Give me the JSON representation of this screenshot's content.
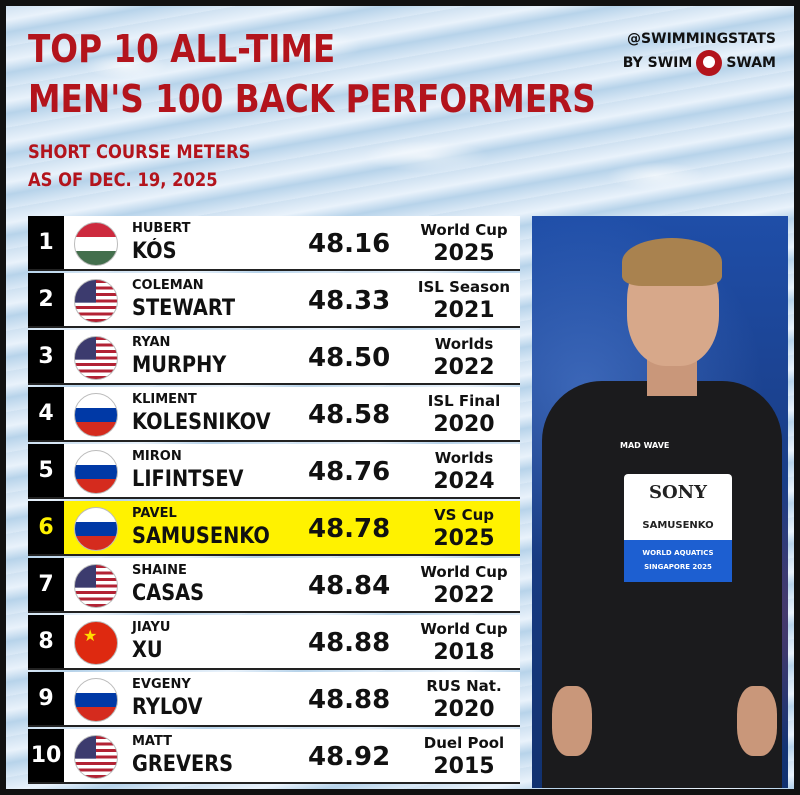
{
  "header": {
    "title_line1": "TOP 10 ALL-TIME",
    "title_line2": "MEN'S 100 BACK PERFORMERS",
    "subtitle_line1": "SHORT COURSE METERS",
    "subtitle_line2": "AS OF DEC. 19, 2025"
  },
  "brand": {
    "handle": "@SWIMMINGSTATS",
    "by": "BY SWIM",
    "swam": "SWAM",
    "logo_icon": "swimswam-logo-icon"
  },
  "colors": {
    "title": "#b3141c",
    "highlight": "#fff200",
    "rank_bg": "#000000"
  },
  "rows": [
    {
      "rank": "1",
      "first": "HUBERT",
      "last": "KÓS",
      "time": "48.16",
      "meet": "World Cup",
      "year": "2025",
      "flag": "hungary-flag-icon"
    },
    {
      "rank": "2",
      "first": "COLEMAN",
      "last": "STEWART",
      "time": "48.33",
      "meet": "ISL Season",
      "year": "2021",
      "flag": "usa-flag-icon"
    },
    {
      "rank": "3",
      "first": "RYAN",
      "last": "MURPHY",
      "time": "48.50",
      "meet": "Worlds",
      "year": "2022",
      "flag": "usa-flag-icon"
    },
    {
      "rank": "4",
      "first": "KLIMENT",
      "last": "KOLESNIKOV",
      "time": "48.58",
      "meet": "ISL Final",
      "year": "2020",
      "flag": "russia-flag-icon"
    },
    {
      "rank": "5",
      "first": "MIRON",
      "last": "LIFINTSEV",
      "time": "48.76",
      "meet": "Worlds",
      "year": "2024",
      "flag": "russia-flag-icon"
    },
    {
      "rank": "6",
      "first": "PAVEL",
      "last": "SAMUSENKO",
      "time": "48.78",
      "meet": "VS Cup",
      "year": "2025",
      "flag": "russia-flag-icon"
    },
    {
      "rank": "7",
      "first": "SHAINE",
      "last": "CASAS",
      "time": "48.84",
      "meet": "World Cup",
      "year": "2022",
      "flag": "usa-flag-icon"
    },
    {
      "rank": "8",
      "first": "JIAYU",
      "last": "XU",
      "time": "48.88",
      "meet": "World Cup",
      "year": "2018",
      "flag": "china-flag-icon"
    },
    {
      "rank": "9",
      "first": "EVGENY",
      "last": "RYLOV",
      "time": "48.88",
      "meet": "RUS Nat.",
      "year": "2020",
      "flag": "russia-flag-icon"
    },
    {
      "rank": "10",
      "first": "MATT",
      "last": "GREVERS",
      "time": "48.92",
      "meet": "Duel Pool",
      "year": "2015",
      "flag": "usa-flag-icon"
    }
  ],
  "photo": {
    "sponsor": "SONY",
    "name_badge": "SAMUSENKO",
    "org": "WORLD AQUATICS",
    "location": "SINGAPORE 2025",
    "suit_brand": "MAD WAVE"
  }
}
